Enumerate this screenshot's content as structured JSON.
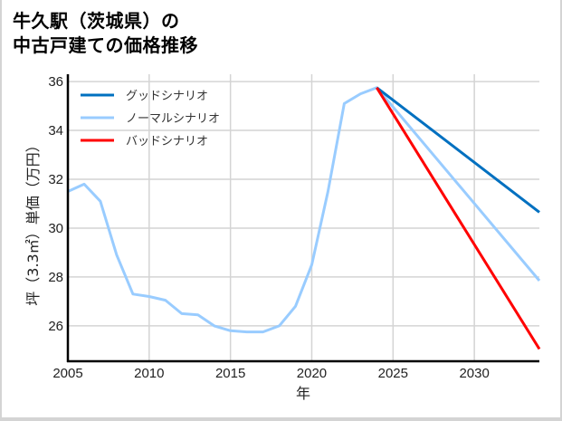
{
  "title_lines": [
    "牛久駅（茨城県）の",
    "中古戸建ての価格推移"
  ],
  "chart_data": {
    "type": "line",
    "title": "牛久駅（茨城県）の中古戸建ての価格推移",
    "xlabel": "年",
    "ylabel": "坪（3.3㎡）単価（万円）",
    "xlim": [
      2005,
      2034
    ],
    "ylim": [
      24.55,
      36.3
    ],
    "xticks": [
      2005,
      2010,
      2015,
      2020,
      2025,
      2030
    ],
    "yticks": [
      26,
      28,
      30,
      32,
      34,
      36
    ],
    "grid": true,
    "legend_position": "upper left",
    "series": [
      {
        "name": "グッドシナリオ",
        "color": "#0070c0",
        "x": [
          2024,
          2034
        ],
        "values": [
          35.75,
          30.65
        ]
      },
      {
        "name": "ノーマルシナリオ",
        "color": "#99ccff",
        "x": [
          2005,
          2006,
          2007,
          2008,
          2009,
          2010,
          2011,
          2012,
          2013,
          2014,
          2015,
          2016,
          2017,
          2018,
          2019,
          2020,
          2021,
          2022,
          2023,
          2024,
          2034
        ],
        "values": [
          31.5,
          31.8,
          31.1,
          28.9,
          27.3,
          27.2,
          27.05,
          26.5,
          26.45,
          26.0,
          25.8,
          25.75,
          25.75,
          26.0,
          26.8,
          28.5,
          31.5,
          35.1,
          35.5,
          35.75,
          27.85
        ]
      },
      {
        "name": "バッドシナリオ",
        "color": "#ff0000",
        "x": [
          2024,
          2034
        ],
        "values": [
          35.75,
          25.05
        ]
      }
    ]
  }
}
